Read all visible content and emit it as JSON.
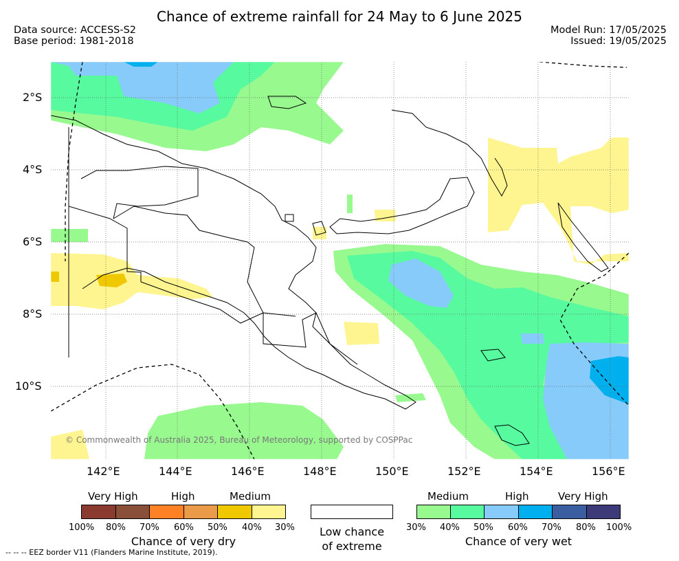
{
  "title": "Chance of extreme rainfall for 24 May to 6 June 2025",
  "header": {
    "data_source": "Data source: ACCESS-S2",
    "base_period": "Base period: 1981-2018",
    "model_run": "Model Run: 17/05/2025",
    "issued": "Issued: 19/05/2025"
  },
  "map": {
    "region": "Papua New Guinea",
    "lat_labels": [
      "2°S",
      "4°S",
      "6°S",
      "8°S",
      "10°S"
    ],
    "lon_labels": [
      "142°E",
      "144°E",
      "146°E",
      "148°E",
      "150°E",
      "152°E",
      "154°E",
      "156°E"
    ],
    "copyright": "© Commonwealth of Australia 2025, Bureau of Meteorology, supported by COSPPac"
  },
  "legend": {
    "dry": {
      "categories": [
        "Very High",
        "High",
        "Medium"
      ],
      "ticks": [
        "100%",
        "80%",
        "70%",
        "60%",
        "50%",
        "40%",
        "30%"
      ],
      "title": "Chance of very dry",
      "colors": [
        "#8b3a30",
        "#8a4f38",
        "#ff8126",
        "#eb9a49",
        "#f0c800",
        "#fff590"
      ]
    },
    "low": {
      "title_line1": "Low chance",
      "title_line2": "of extreme",
      "color": "#ffffff"
    },
    "wet": {
      "categories": [
        "Medium",
        "High",
        "Very High"
      ],
      "ticks": [
        "30%",
        "40%",
        "50%",
        "60%",
        "70%",
        "80%",
        "100%"
      ],
      "title": "Chance of very wet",
      "colors": [
        "#98f98f",
        "#57fa9f",
        "#87cbfa",
        "#00b0ee",
        "#3a5ea0",
        "#3c3a78"
      ]
    }
  },
  "eez_note": "--  --  -- EEZ border V11 (Flanders Marine Institute, 2019)."
}
